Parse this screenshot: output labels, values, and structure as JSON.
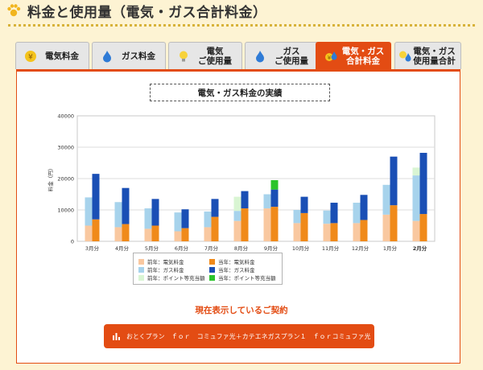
{
  "header": {
    "title": "料金と使用量（電気・ガス合計料金）"
  },
  "tabs": [
    {
      "label": "電気料金",
      "icon": "yen-coin-icon",
      "active": false
    },
    {
      "label": "ガス料金",
      "icon": "gas-flame-icon",
      "active": false
    },
    {
      "label": "電気\nご使用量",
      "icon": "lightbulb-icon",
      "active": false
    },
    {
      "label": "ガス\nご使用量",
      "icon": "gas-flame-icon",
      "active": false
    },
    {
      "label": "電気・ガス\n合計料金",
      "icon": "yen-flame-icon",
      "active": true
    },
    {
      "label": "電気・ガス\n使用量合計",
      "icon": "bulb-flame-icon",
      "active": false
    }
  ],
  "chart_title": "電気・ガス料金の実績",
  "chart_data": {
    "type": "bar",
    "ylabel": "料金（円）",
    "ylim": [
      0,
      40000
    ],
    "yticks": [
      0,
      10000,
      20000,
      30000,
      40000
    ],
    "grid": true,
    "categories": [
      "3月分",
      "4月分",
      "5月分",
      "6月分",
      "7月分",
      "8月分",
      "9月分",
      "10月分",
      "11月分",
      "12月分",
      "1月分",
      "2月分"
    ],
    "bold_categories": [
      "2月分"
    ],
    "prev_year": {
      "electric": [
        5000,
        4500,
        4000,
        3200,
        4500,
        6500,
        10500,
        5800,
        5600,
        5800,
        8500,
        6500
      ],
      "gas": [
        9000,
        8000,
        6500,
        6000,
        5000,
        3200,
        4500,
        4200,
        4200,
        6500,
        9500,
        14500
      ],
      "point": [
        0,
        0,
        0,
        0,
        0,
        4500,
        0,
        0,
        0,
        0,
        0,
        2500
      ]
    },
    "curr_year": {
      "electric": [
        7000,
        5500,
        5000,
        4200,
        7800,
        10500,
        11000,
        9000,
        5800,
        6800,
        11500,
        8700
      ],
      "gas": [
        14500,
        11500,
        8500,
        6000,
        5700,
        5500,
        5500,
        5200,
        6500,
        8000,
        15500,
        19500
      ],
      "point": [
        0,
        0,
        0,
        0,
        0,
        0,
        3000,
        0,
        0,
        0,
        0,
        0
      ]
    },
    "legend": [
      {
        "label": "前年：電気料金",
        "color": "#f9c8a0"
      },
      {
        "label": "当年：電気料金",
        "color": "#f08a1a"
      },
      {
        "label": "前年：ガス料金",
        "color": "#a7d3ec"
      },
      {
        "label": "当年：ガス料金",
        "color": "#1a4fb5"
      },
      {
        "label": "前年：ポイント等充当額",
        "color": "#d9f5d3"
      },
      {
        "label": "当年：ポイント等充当額",
        "color": "#2bc42b"
      }
    ]
  },
  "contract_title": "現在表示しているご契約",
  "plan_button": {
    "label": "おとくプラン　ｆｏｒ　コミュファ光＋カテエネガスプラン１　ｆｏｒコミュファ光",
    "icon": "bar-chart-icon"
  },
  "colors": {
    "accent": "#e34c13",
    "background": "#fdf3d3"
  }
}
